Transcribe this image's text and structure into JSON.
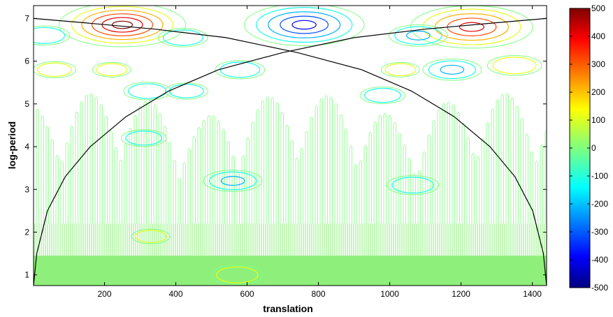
{
  "chart_data": {
    "type": "contour",
    "xlabel": "translation",
    "ylabel": "log-period",
    "xlim": [
      1,
      1440
    ],
    "ylim": [
      0.75,
      7.3
    ],
    "x_ticks": [
      200,
      400,
      600,
      800,
      1000,
      1200,
      1400
    ],
    "y_ticks": [
      1,
      2,
      3,
      4,
      5,
      6,
      7
    ],
    "colorbar": {
      "min": -500,
      "max": 500,
      "ticks": [
        500,
        400,
        300,
        200,
        100,
        0,
        -100,
        -200,
        -300,
        -400,
        -500
      ],
      "colormap": "jet"
    },
    "contour_features": [
      {
        "x": 250,
        "y": 6.85,
        "value": 450
      },
      {
        "x": 760,
        "y": 6.85,
        "value": -420
      },
      {
        "x": 1230,
        "y": 6.8,
        "value": 430
      },
      {
        "x": 30,
        "y": 6.6,
        "value": -120
      },
      {
        "x": 420,
        "y": 6.55,
        "value": -110
      },
      {
        "x": 1080,
        "y": 6.6,
        "value": -150
      },
      {
        "x": 60,
        "y": 5.8,
        "value": 80
      },
      {
        "x": 220,
        "y": 5.8,
        "value": 60
      },
      {
        "x": 580,
        "y": 5.8,
        "value": -110
      },
      {
        "x": 1030,
        "y": 5.8,
        "value": 60
      },
      {
        "x": 1175,
        "y": 5.8,
        "value": -150
      },
      {
        "x": 1350,
        "y": 5.9,
        "value": 130
      },
      {
        "x": 320,
        "y": 5.3,
        "value": -100
      },
      {
        "x": 430,
        "y": 5.3,
        "value": -80
      },
      {
        "x": 980,
        "y": 5.2,
        "value": -90
      },
      {
        "x": 310,
        "y": 4.2,
        "value": -90
      },
      {
        "x": 560,
        "y": 3.2,
        "value": -150
      },
      {
        "x": 1065,
        "y": 3.1,
        "value": -120
      },
      {
        "x": 330,
        "y": 1.9,
        "value": 60
      },
      {
        "x": 572,
        "y": 1.0,
        "value": 120
      }
    ],
    "cone_of_influence": {
      "left": [
        [
          1,
          0.75
        ],
        [
          10,
          1.5
        ],
        [
          40,
          2.5
        ],
        [
          90,
          3.3
        ],
        [
          160,
          4.0
        ],
        [
          260,
          4.7
        ],
        [
          380,
          5.3
        ],
        [
          520,
          5.8
        ],
        [
          700,
          6.2
        ],
        [
          900,
          6.55
        ],
        [
          1100,
          6.75
        ],
        [
          1300,
          6.9
        ],
        [
          1440,
          7.0
        ]
      ],
      "right": [
        [
          1440,
          0.75
        ],
        [
          1431,
          1.5
        ],
        [
          1401,
          2.5
        ],
        [
          1351,
          3.3
        ],
        [
          1281,
          4.0
        ],
        [
          1181,
          4.7
        ],
        [
          1061,
          5.3
        ],
        [
          921,
          5.8
        ],
        [
          741,
          6.2
        ],
        [
          541,
          6.55
        ],
        [
          341,
          6.75
        ],
        [
          141,
          6.9
        ],
        [
          1,
          7.0
        ]
      ]
    }
  }
}
